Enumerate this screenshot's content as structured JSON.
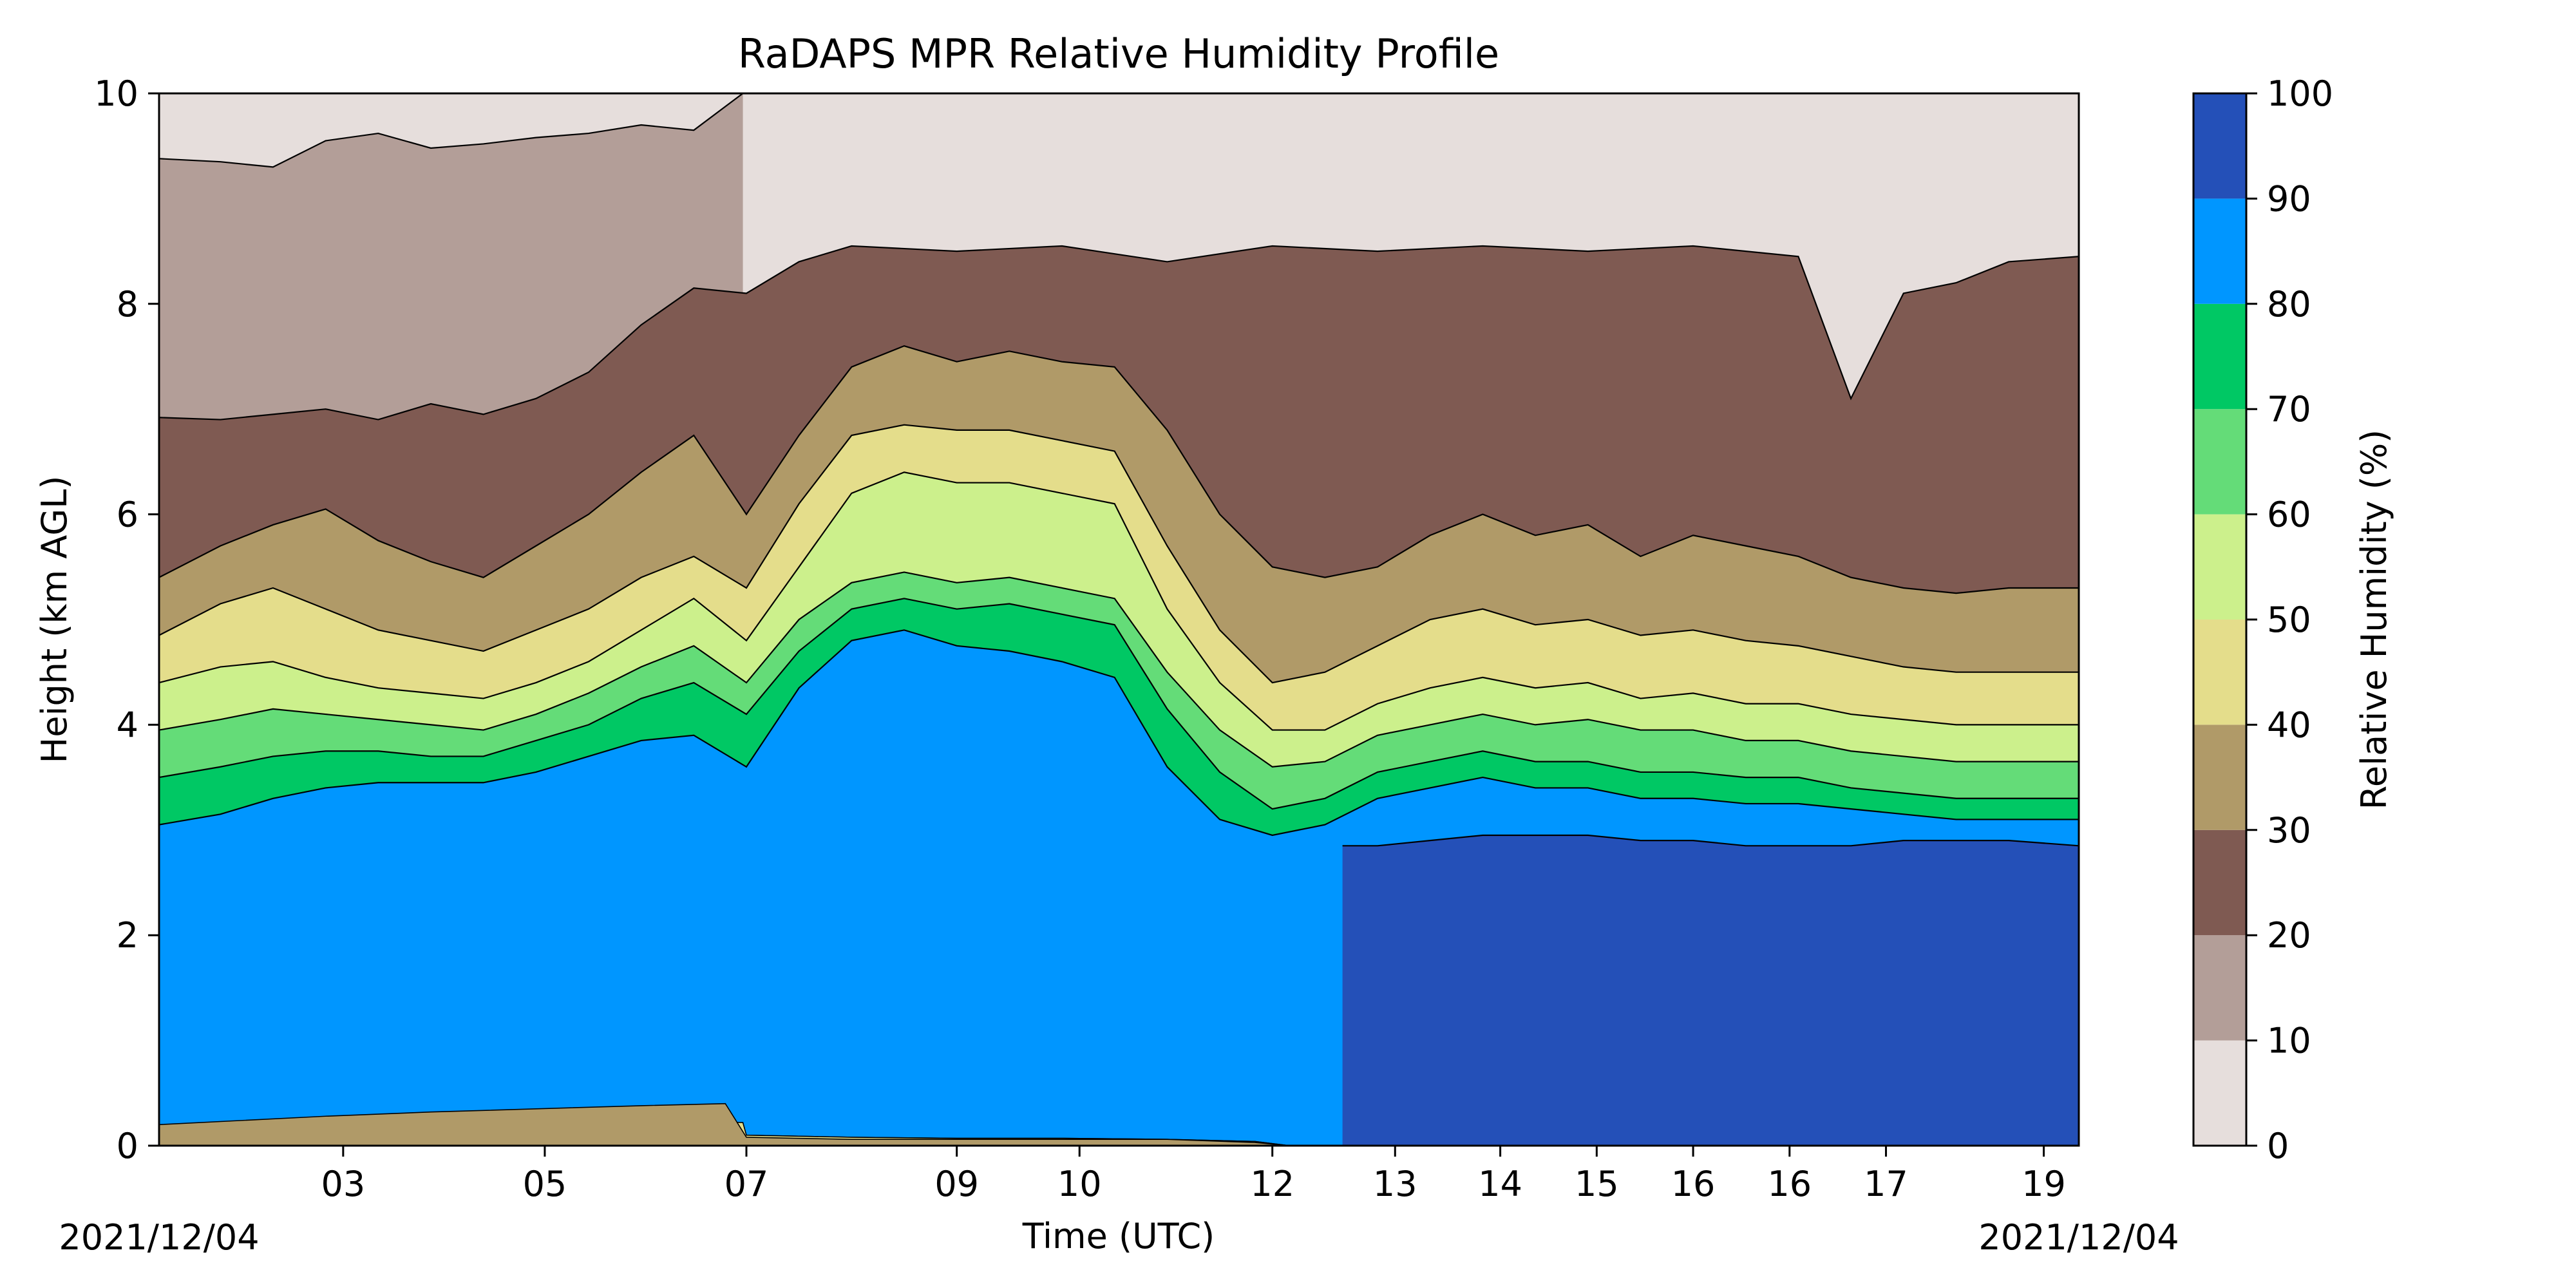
{
  "chart_data": {
    "type": "heatmap",
    "title": "RaDAPS MPR Relative Humidity Profile",
    "xlabel": "Time (UTC)",
    "ylabel": "Height (km AGL)",
    "start_date": "2021/12/04",
    "end_date": "2021/12/04",
    "xlim": [
      "01:25",
      "19:40"
    ],
    "ylim": [
      0,
      10
    ],
    "x_ticks": [
      {
        "t": "03:10",
        "label": "03"
      },
      {
        "t": "05:05",
        "label": "05"
      },
      {
        "t": "07:00",
        "label": "07"
      },
      {
        "t": "09:00",
        "label": "09"
      },
      {
        "t": "10:10",
        "label": "10"
      },
      {
        "t": "12:00",
        "label": "12"
      },
      {
        "t": "13:10",
        "label": "13"
      },
      {
        "t": "14:10",
        "label": "14"
      },
      {
        "t": "15:05",
        "label": "15"
      },
      {
        "t": "16:00",
        "label": "16"
      },
      {
        "t": "16:55",
        "label": "16"
      },
      {
        "t": "17:50",
        "label": "17"
      },
      {
        "t": "19:20",
        "label": "19"
      }
    ],
    "y_ticks": [
      0,
      2,
      4,
      6,
      8,
      10
    ],
    "colorbar": {
      "label": "Relative Humidity (%)",
      "levels": [
        0,
        10,
        20,
        30,
        40,
        50,
        60,
        70,
        80,
        90,
        100
      ],
      "colors": [
        "#e6dedc",
        "#b39e98",
        "#7f5a52",
        "#b09a68",
        "#e4dd8b",
        "#ccf08c",
        "#64dc78",
        "#00c864",
        "#0096ff",
        "#2450b8"
      ]
    },
    "series": [
      {
        "level": 10,
        "x": [
          "01:25",
          "02:00",
          "02:30",
          "03:00",
          "03:30",
          "04:00",
          "04:30",
          "05:00",
          "05:30",
          "06:00",
          "06:30",
          "06:58"
        ],
        "y": [
          9.38,
          9.35,
          9.3,
          9.55,
          9.62,
          9.48,
          9.52,
          9.58,
          9.62,
          9.7,
          9.65,
          10.0
        ]
      },
      {
        "level": 20,
        "x": [
          "01:25",
          "02:00",
          "02:30",
          "03:00",
          "03:30",
          "04:00",
          "04:30",
          "05:00",
          "05:30",
          "06:00",
          "06:30",
          "07:00",
          "07:30",
          "08:00",
          "09:00",
          "10:00",
          "11:00",
          "12:00",
          "13:00",
          "14:00",
          "15:00",
          "16:00",
          "17:00",
          "17:30",
          "18:00",
          "18:30",
          "19:00",
          "19:40"
        ],
        "y": [
          6.92,
          6.9,
          6.95,
          7.0,
          6.9,
          7.05,
          6.95,
          7.1,
          7.35,
          7.8,
          8.15,
          8.1,
          8.4,
          8.55,
          8.5,
          8.55,
          8.4,
          8.55,
          8.5,
          8.55,
          8.5,
          8.55,
          8.45,
          7.1,
          8.1,
          8.2,
          8.4,
          8.45
        ]
      },
      {
        "level": 30,
        "x": [
          "01:25",
          "02:00",
          "02:30",
          "03:00",
          "03:30",
          "04:00",
          "04:30",
          "05:00",
          "05:30",
          "06:00",
          "06:30",
          "07:00",
          "07:30",
          "08:00",
          "08:30",
          "09:00",
          "09:30",
          "10:00",
          "10:30",
          "11:00",
          "11:30",
          "12:00",
          "12:30",
          "13:00",
          "13:30",
          "14:00",
          "14:30",
          "15:00",
          "15:30",
          "16:00",
          "16:30",
          "17:00",
          "17:30",
          "18:00",
          "18:30",
          "19:00",
          "19:40"
        ],
        "y": [
          5.4,
          5.7,
          5.9,
          6.05,
          5.75,
          5.55,
          5.4,
          5.7,
          6.0,
          6.4,
          6.75,
          6.0,
          6.75,
          7.4,
          7.6,
          7.45,
          7.55,
          7.45,
          7.4,
          6.8,
          6.0,
          5.5,
          5.4,
          5.5,
          5.8,
          6.0,
          5.8,
          5.9,
          5.6,
          5.8,
          5.7,
          5.6,
          5.4,
          5.3,
          5.25,
          5.3,
          5.3
        ]
      },
      {
        "level": 40,
        "x": [
          "01:25",
          "02:00",
          "02:30",
          "03:00",
          "03:30",
          "04:00",
          "04:30",
          "05:00",
          "05:30",
          "06:00",
          "06:30",
          "07:00",
          "07:30",
          "08:00",
          "08:30",
          "09:00",
          "09:30",
          "10:00",
          "10:30",
          "11:00",
          "11:30",
          "12:00",
          "12:30",
          "13:00",
          "13:30",
          "14:00",
          "14:30",
          "15:00",
          "15:30",
          "16:00",
          "16:30",
          "17:00",
          "17:30",
          "18:00",
          "18:30",
          "19:00",
          "19:40"
        ],
        "y": [
          4.85,
          5.15,
          5.3,
          5.1,
          4.9,
          4.8,
          4.7,
          4.9,
          5.1,
          5.4,
          5.6,
          5.3,
          6.1,
          6.75,
          6.85,
          6.8,
          6.8,
          6.7,
          6.6,
          5.7,
          4.9,
          4.4,
          4.5,
          4.75,
          5.0,
          5.1,
          4.95,
          5.0,
          4.85,
          4.9,
          4.8,
          4.75,
          4.65,
          4.55,
          4.5,
          4.5,
          4.5
        ]
      },
      {
        "level": 50,
        "x": [
          "01:25",
          "02:00",
          "02:30",
          "03:00",
          "03:30",
          "04:00",
          "04:30",
          "05:00",
          "05:30",
          "06:00",
          "06:30",
          "07:00",
          "07:30",
          "08:00",
          "08:30",
          "09:00",
          "09:30",
          "10:00",
          "10:30",
          "11:00",
          "11:30",
          "12:00",
          "12:30",
          "13:00",
          "13:30",
          "14:00",
          "14:30",
          "15:00",
          "15:30",
          "16:00",
          "16:30",
          "17:00",
          "17:30",
          "18:00",
          "18:30",
          "19:00",
          "19:40"
        ],
        "y": [
          4.4,
          4.55,
          4.6,
          4.45,
          4.35,
          4.3,
          4.25,
          4.4,
          4.6,
          4.9,
          5.2,
          4.8,
          5.5,
          6.2,
          6.4,
          6.3,
          6.3,
          6.2,
          6.1,
          5.1,
          4.4,
          3.95,
          3.95,
          4.2,
          4.35,
          4.45,
          4.35,
          4.4,
          4.25,
          4.3,
          4.2,
          4.2,
          4.1,
          4.05,
          4.0,
          4.0,
          4.0
        ]
      },
      {
        "level": 60,
        "x": [
          "01:25",
          "02:00",
          "02:30",
          "03:00",
          "03:30",
          "04:00",
          "04:30",
          "05:00",
          "05:30",
          "06:00",
          "06:30",
          "07:00",
          "07:30",
          "08:00",
          "08:30",
          "09:00",
          "09:30",
          "10:00",
          "10:30",
          "11:00",
          "11:30",
          "12:00",
          "12:30",
          "13:00",
          "13:30",
          "14:00",
          "14:30",
          "15:00",
          "15:30",
          "16:00",
          "16:30",
          "17:00",
          "17:30",
          "18:00",
          "18:30",
          "19:00",
          "19:40"
        ],
        "y": [
          3.95,
          4.05,
          4.15,
          4.1,
          4.05,
          4.0,
          3.95,
          4.1,
          4.3,
          4.55,
          4.75,
          4.4,
          5.0,
          5.35,
          5.45,
          5.35,
          5.4,
          5.3,
          5.2,
          4.5,
          3.95,
          3.6,
          3.65,
          3.9,
          4.0,
          4.1,
          4.0,
          4.05,
          3.95,
          3.95,
          3.85,
          3.85,
          3.75,
          3.7,
          3.65,
          3.65,
          3.65
        ]
      },
      {
        "level": 70,
        "x": [
          "01:25",
          "02:00",
          "02:30",
          "03:00",
          "03:30",
          "04:00",
          "04:30",
          "05:00",
          "05:30",
          "06:00",
          "06:30",
          "07:00",
          "07:30",
          "08:00",
          "08:30",
          "09:00",
          "09:30",
          "10:00",
          "10:30",
          "11:00",
          "11:30",
          "12:00",
          "12:30",
          "13:00",
          "13:30",
          "14:00",
          "14:30",
          "15:00",
          "15:30",
          "16:00",
          "16:30",
          "17:00",
          "17:30",
          "18:00",
          "18:30",
          "19:00",
          "19:40"
        ],
        "y": [
          3.5,
          3.6,
          3.7,
          3.75,
          3.75,
          3.7,
          3.7,
          3.85,
          4.0,
          4.25,
          4.4,
          4.1,
          4.7,
          5.1,
          5.2,
          5.1,
          5.15,
          5.05,
          4.95,
          4.15,
          3.55,
          3.2,
          3.3,
          3.55,
          3.65,
          3.75,
          3.65,
          3.65,
          3.55,
          3.55,
          3.5,
          3.5,
          3.4,
          3.35,
          3.3,
          3.3,
          3.3
        ]
      },
      {
        "level": 80,
        "x": [
          "01:25",
          "02:00",
          "02:30",
          "03:00",
          "03:30",
          "04:00",
          "04:30",
          "05:00",
          "05:30",
          "06:00",
          "06:30",
          "07:00",
          "07:30",
          "08:00",
          "08:30",
          "09:00",
          "09:30",
          "10:00",
          "10:30",
          "11:00",
          "11:30",
          "12:00",
          "12:30",
          "13:00",
          "13:30",
          "14:00",
          "14:30",
          "15:00",
          "15:30",
          "16:00",
          "16:30",
          "17:00",
          "17:30",
          "18:00",
          "18:30",
          "19:00",
          "19:40"
        ],
        "y": [
          3.05,
          3.15,
          3.3,
          3.4,
          3.45,
          3.45,
          3.45,
          3.55,
          3.7,
          3.85,
          3.9,
          3.6,
          4.35,
          4.8,
          4.9,
          4.75,
          4.7,
          4.6,
          4.45,
          3.6,
          3.1,
          2.95,
          3.05,
          3.3,
          3.4,
          3.5,
          3.4,
          3.4,
          3.3,
          3.3,
          3.25,
          3.25,
          3.2,
          3.15,
          3.1,
          3.1,
          3.1
        ]
      },
      {
        "level": 90,
        "x": [
          "12:40",
          "13:00",
          "13:30",
          "14:00",
          "14:30",
          "15:00",
          "15:30",
          "16:00",
          "16:30",
          "17:00",
          "17:30",
          "18:00",
          "18:30",
          "19:00",
          "19:40"
        ],
        "y": [
          2.85,
          2.85,
          2.9,
          2.95,
          2.95,
          2.95,
          2.9,
          2.9,
          2.85,
          2.85,
          2.85,
          2.9,
          2.9,
          2.9,
          2.85
        ]
      }
    ],
    "low_level_bands": [
      {
        "from": 30,
        "to": 40,
        "x": [
          "01:25",
          "03:00",
          "04:00",
          "05:00",
          "06:00",
          "06:48",
          "07:00",
          "08:00",
          "09:00",
          "10:00",
          "11:00",
          "11:50",
          "12:10"
        ],
        "y": [
          0.2,
          0.28,
          0.32,
          0.35,
          0.38,
          0.4,
          0.08,
          0.06,
          0.06,
          0.06,
          0.06,
          0.03,
          0.0
        ]
      },
      {
        "from": 40,
        "to": 50,
        "x": [
          "01:25",
          "03:00",
          "04:00",
          "05:00",
          "06:00",
          "06:58",
          "07:00",
          "08:00",
          "09:00",
          "10:00",
          "11:00",
          "11:50",
          "12:10"
        ],
        "y": [
          0.14,
          0.18,
          0.2,
          0.22,
          0.24,
          0.22,
          0.1,
          0.08,
          0.07,
          0.07,
          0.06,
          0.04,
          0.0
        ]
      },
      {
        "from": 50,
        "to": 60,
        "x": [
          "01:25",
          "03:00",
          "04:00",
          "05:00",
          "06:00",
          "07:00",
          "08:00",
          "09:00",
          "10:00",
          "11:00",
          "11:50",
          "12:10"
        ],
        "y": [
          0.09,
          0.1,
          0.11,
          0.12,
          0.12,
          0.1,
          0.08,
          0.07,
          0.07,
          0.06,
          0.04,
          0.0
        ]
      },
      {
        "from": 60,
        "to": 90,
        "x": [
          "01:25",
          "03:00",
          "05:00",
          "07:00",
          "09:00",
          "11:00",
          "11:50",
          "12:10"
        ],
        "y": [
          0.04,
          0.05,
          0.05,
          0.04,
          0.04,
          0.03,
          0.02,
          0.0
        ]
      }
    ]
  }
}
